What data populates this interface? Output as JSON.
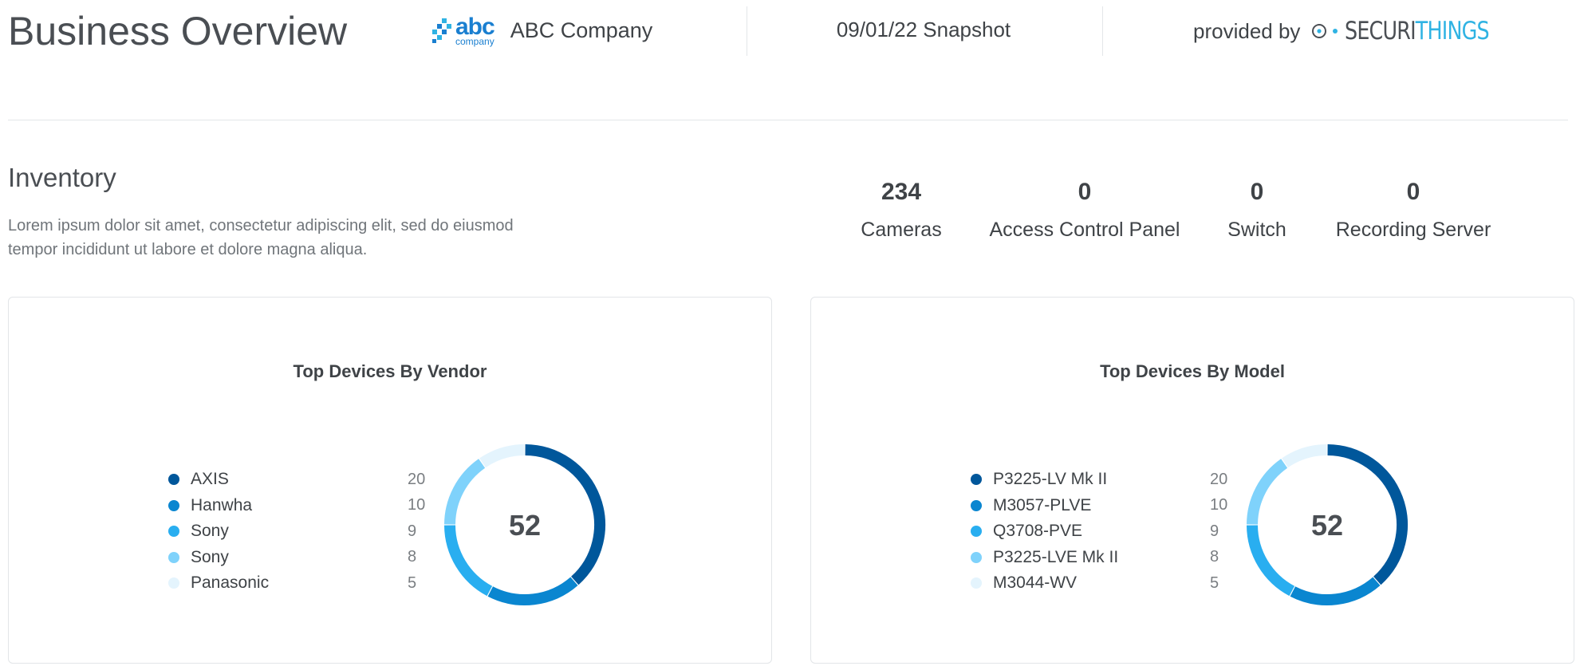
{
  "header": {
    "title": "Business Overview",
    "logo_text": "abc",
    "logo_sub": "company",
    "company_name": "ABC Company",
    "snapshot": "09/01/22 Snapshot",
    "provided_by": "provided by",
    "brand_part1": "SECURI",
    "brand_part2": "THINGS"
  },
  "inventory": {
    "heading": "Inventory",
    "description": "Lorem ipsum dolor sit amet, consectetur adipiscing elit, sed do eiusmod tempor incididunt ut labore et dolore magna aliqua.",
    "stats": [
      {
        "value": "234",
        "label": "Cameras"
      },
      {
        "value": "0",
        "label": "Access Control Panel"
      },
      {
        "value": "0",
        "label": "Switch"
      },
      {
        "value": "0",
        "label": "Recording Server"
      }
    ]
  },
  "colors": [
    "#00579b",
    "#0a86d0",
    "#29aef0",
    "#7fd2fb",
    "#e4f4fd"
  ],
  "chart_data": [
    {
      "type": "pie",
      "title": "Top Devices By Vendor",
      "center_label": "52",
      "categories": [
        "AXIS",
        "Hanwha",
        "Sony",
        "Sony",
        "Panasonic"
      ],
      "values": [
        20,
        10,
        9,
        8,
        5
      ]
    },
    {
      "type": "pie",
      "title": "Top Devices By Model",
      "center_label": "52",
      "categories": [
        "P3225-LV Mk II",
        "M3057-PLVE",
        "Q3708-PVE",
        "P3225-LVE Mk II",
        "M3044-WV"
      ],
      "values": [
        20,
        10,
        9,
        8,
        5
      ]
    }
  ]
}
